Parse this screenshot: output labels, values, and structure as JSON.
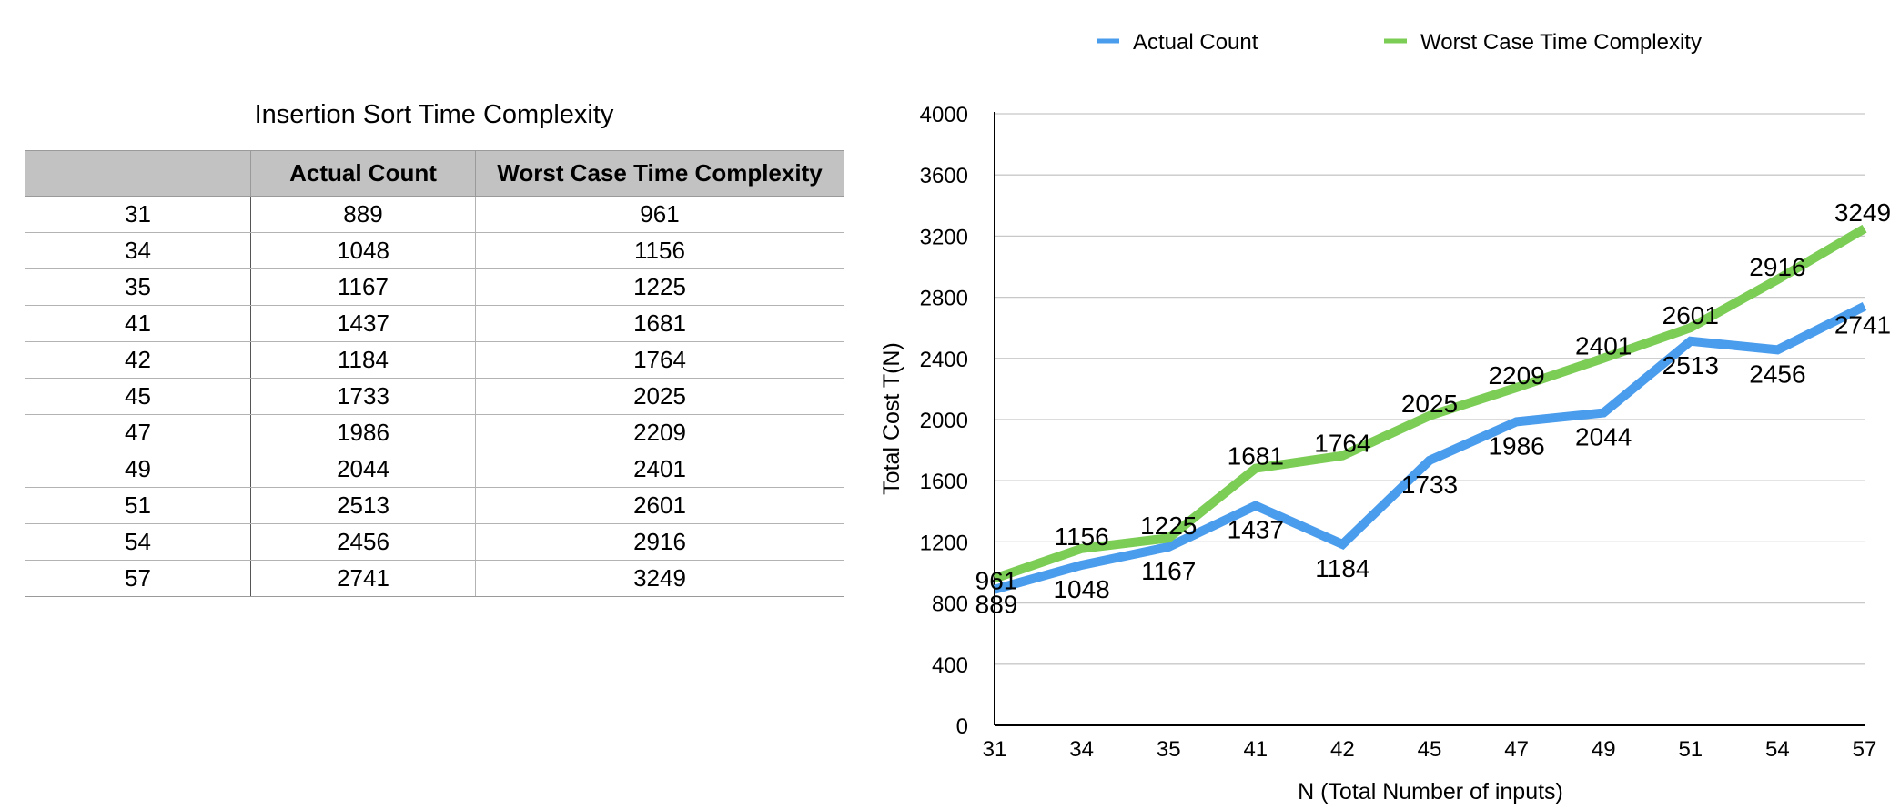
{
  "table": {
    "title": "Insertion Sort Time Complexity",
    "headers": [
      "",
      "Actual Count",
      "Worst Case Time Complexity"
    ],
    "rows": [
      [
        "31",
        "889",
        "961"
      ],
      [
        "34",
        "1048",
        "1156"
      ],
      [
        "35",
        "1167",
        "1225"
      ],
      [
        "41",
        "1437",
        "1681"
      ],
      [
        "42",
        "1184",
        "1764"
      ],
      [
        "45",
        "1733",
        "2025"
      ],
      [
        "47",
        "1986",
        "2209"
      ],
      [
        "49",
        "2044",
        "2401"
      ],
      [
        "51",
        "2513",
        "2601"
      ],
      [
        "54",
        "2456",
        "2916"
      ],
      [
        "57",
        "2741",
        "3249"
      ]
    ]
  },
  "chart_data": {
    "type": "line",
    "title": "",
    "xlabel": "N (Total Number of inputs)",
    "ylabel": "Total Cost T(N)",
    "categories": [
      "31",
      "34",
      "35",
      "41",
      "42",
      "45",
      "47",
      "49",
      "51",
      "54",
      "57"
    ],
    "ylim": [
      0,
      4000
    ],
    "yticks": [
      0,
      400,
      800,
      1200,
      1600,
      2000,
      2400,
      2800,
      3200,
      3600,
      4000
    ],
    "grid": true,
    "legend": "top",
    "series": [
      {
        "name": "Actual Count",
        "color": "#4a9ced",
        "values": [
          889,
          1048,
          1167,
          1437,
          1184,
          1733,
          1986,
          2044,
          2513,
          2456,
          2741
        ]
      },
      {
        "name": "Worst Case Time Complexity",
        "color": "#7ccd55",
        "values": [
          961,
          1156,
          1225,
          1681,
          1764,
          2025,
          2209,
          2401,
          2601,
          2916,
          3249
        ]
      }
    ]
  }
}
